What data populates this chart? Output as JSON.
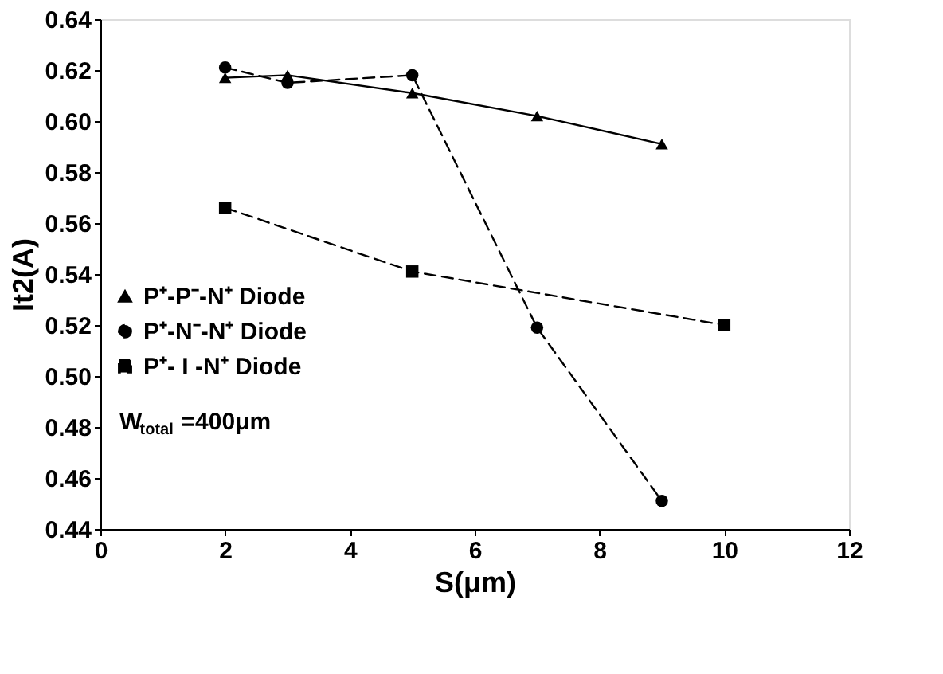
{
  "chart_data": {
    "type": "line",
    "xlabel": "S(μm)",
    "ylabel": "It2(A)",
    "xlim": [
      0,
      12
    ],
    "xticks": [
      0,
      2,
      4,
      6,
      8,
      10,
      12
    ],
    "ylim": [
      0.44,
      0.64
    ],
    "yticks": [
      0.44,
      0.46,
      0.48,
      {
        "value": 0.5,
        "label": "0.50"
      },
      0.52,
      0.54,
      0.56,
      0.58,
      {
        "value": 0.6,
        "label": "0.60"
      },
      0.62,
      0.64
    ],
    "legend": "left",
    "grid": false,
    "annotations": [
      "W$_{total}$=400μm"
    ],
    "series": [
      {
        "name": "P⁺-P⁻-N⁺ Diode",
        "color": "#000000",
        "marker": "triangle",
        "line_style": "solid",
        "x": [
          2,
          3,
          5,
          7,
          9
        ],
        "values": [
          0.617,
          0.618,
          0.611,
          0.602,
          0.591
        ]
      },
      {
        "name": "P⁺-N⁻-N⁺ Diode",
        "color": "#000000",
        "marker": "circle",
        "line_style": "dashed",
        "x": [
          2,
          3,
          5,
          7,
          9
        ],
        "values": [
          0.621,
          0.615,
          0.618,
          0.519,
          0.451
        ]
      },
      {
        "name": "P⁺- I -N⁺ Diode",
        "color": "#000000",
        "marker": "square",
        "line_style": "dashed",
        "x": [
          2,
          5,
          10
        ],
        "values": [
          0.566,
          0.541,
          0.52
        ]
      }
    ]
  }
}
